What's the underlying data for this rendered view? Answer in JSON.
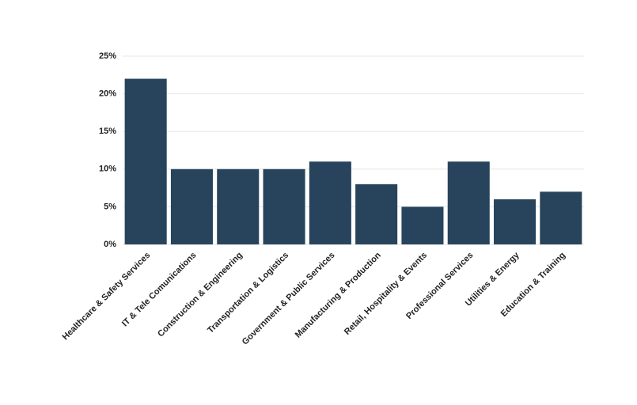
{
  "chart_data": {
    "type": "bar",
    "categories": [
      "Healthcare & Safety Services",
      "IT & Tele Comunications",
      "Construction & Engineering",
      "Transportation & Logistics",
      "Government & Public Services",
      "Manufacturing & Production",
      "Retail, Hospitality & Events",
      "Professional Services",
      "Utilities & Energy",
      "Education & Training"
    ],
    "values": [
      22,
      10,
      10,
      10,
      11,
      8,
      5,
      11,
      6,
      7
    ],
    "color": "#27445c",
    "ylim": [
      0,
      25
    ],
    "yticks": [
      {
        "value": 0,
        "label": "0%"
      },
      {
        "value": 5,
        "label": "5%"
      },
      {
        "value": 10,
        "label": "10%"
      },
      {
        "value": 15,
        "label": "15%"
      },
      {
        "value": 20,
        "label": "20%"
      },
      {
        "value": 25,
        "label": "25%"
      }
    ],
    "grid": true
  }
}
